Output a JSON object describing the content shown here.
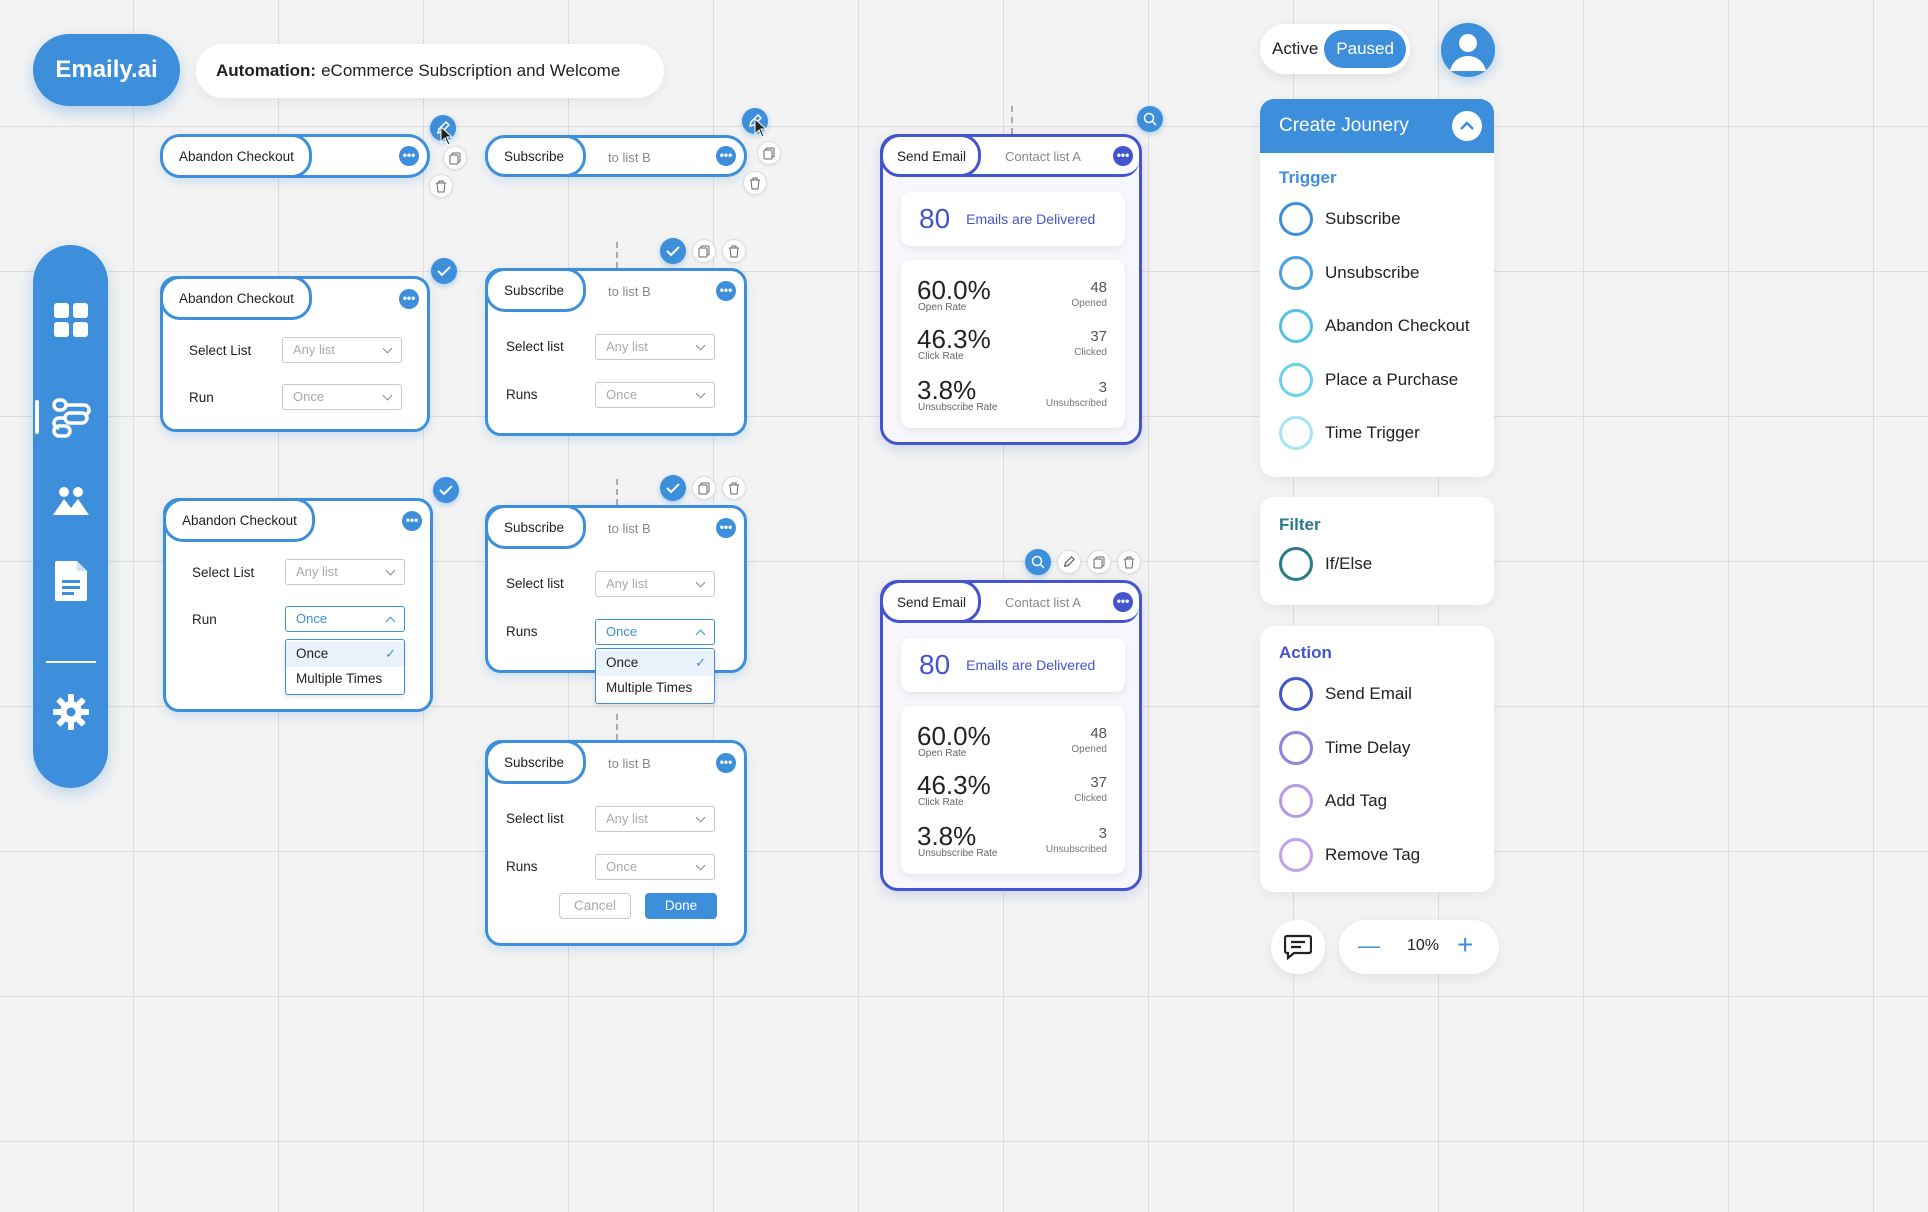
{
  "brand": "Emaily.ai",
  "automation": {
    "prefix": "Automation:",
    "name": "eCommerce Subscription and Welcome"
  },
  "status": {
    "active": "Active",
    "paused": "Paused"
  },
  "nodes": {
    "abandon": "Abandon Checkout",
    "subscribe": "Subscribe",
    "to_list": "to list B",
    "select_list": "Select List",
    "select_list_lc": "Select list",
    "run": "Run",
    "runs": "Runs",
    "any_list": "Any list",
    "once": "Once",
    "multiple": "Multiple Times",
    "cancel": "Cancel",
    "done": "Done"
  },
  "email_cards": [
    {
      "tag": "Send Email",
      "sub": "Contact list A",
      "delivered": "80",
      "delivered_label": "Emails are Delivered",
      "open_rate": "60.0%",
      "open_label": "Open Rate",
      "opened": "48",
      "opened_label": "Opened",
      "click_rate": "46.3%",
      "click_label": "Click Rate",
      "clicked": "37",
      "clicked_label": "Clicked",
      "unsub_rate": "3.8%",
      "unsub_label": "Unsubscribe Rate",
      "unsubscribed": "3",
      "unsubscribed_label": "Unsubscribed"
    },
    {
      "tag": "Send Email",
      "sub": "Contact list A",
      "delivered": "80",
      "delivered_label": "Emails are Delivered",
      "open_rate": "60.0%",
      "open_label": "Open Rate",
      "opened": "48",
      "opened_label": "Opened",
      "click_rate": "46.3%",
      "click_label": "Click Rate",
      "clicked": "37",
      "clicked_label": "Clicked",
      "unsub_rate": "3.8%",
      "unsub_label": "Unsubscribe Rate",
      "unsubscribed": "3",
      "unsubscribed_label": "Unsubscribed"
    }
  ],
  "panel": {
    "title": "Create Jounery",
    "trigger": {
      "title": "Trigger",
      "items": [
        "Subscribe",
        "Unsubscribe",
        "Abandon Checkout",
        "Place a Purchase",
        "Time Trigger"
      ],
      "colors": [
        "#3d8fdb",
        "#4aa3e0",
        "#56bfe8",
        "#6fd0ee",
        "#a8e3f5"
      ]
    },
    "filter": {
      "title": "Filter",
      "items": [
        "If/Else"
      ],
      "colors": [
        "#2a7a8a"
      ]
    },
    "action": {
      "title": "Action",
      "items": [
        "Send Email",
        "Time Delay",
        "Add Tag",
        "Remove Tag"
      ],
      "colors": [
        "#4355cc",
        "#8a86d8",
        "#b59ae6",
        "#c2a0ee"
      ]
    }
  },
  "zoom": {
    "value": "10%",
    "minus": "—",
    "plus": "+"
  },
  "icons": [
    "pencil-icon",
    "copy-icon",
    "trash-icon",
    "check-icon",
    "search-icon",
    "grid-icon",
    "workflow-icon",
    "audience-icon",
    "document-icon",
    "gear-icon",
    "chat-icon",
    "user-icon",
    "chevron-up-icon"
  ],
  "colors": {
    "primary": "#3d8fdb",
    "email": "#4355cc"
  }
}
